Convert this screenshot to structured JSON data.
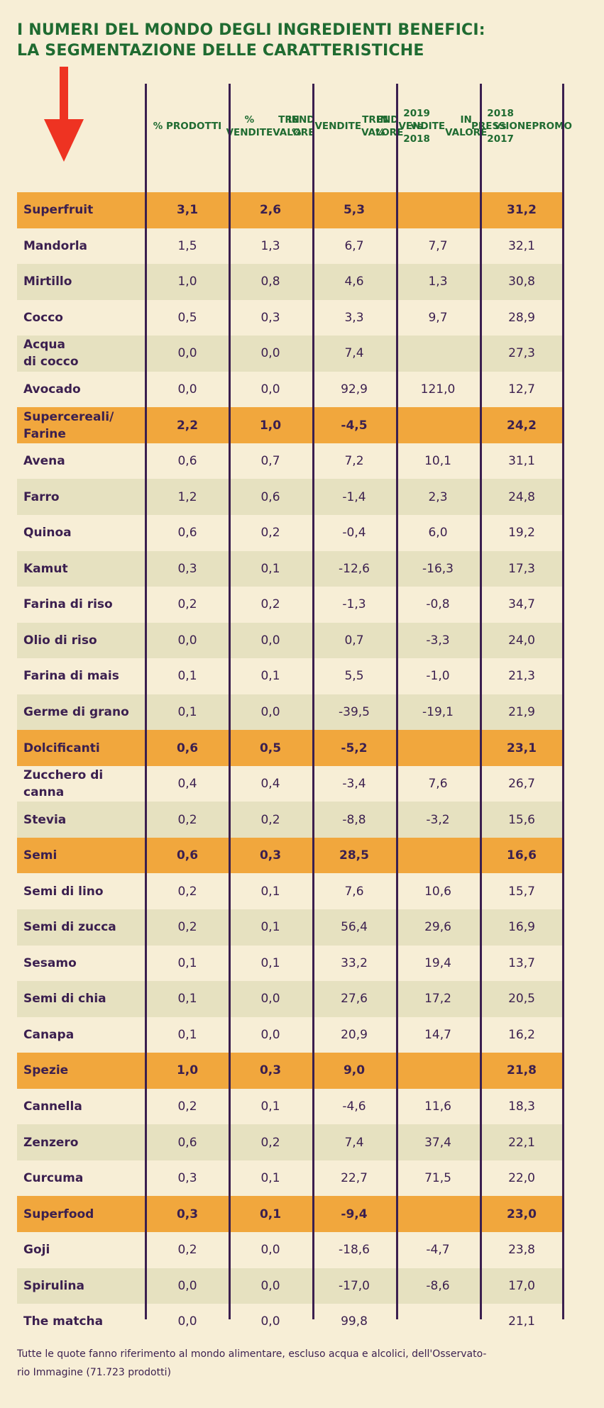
{
  "title": {
    "line1": "I NUMERI DEL MONDO DEGLI INGREDIENTI BENEFICI:",
    "line2": "LA SEGMENTAZIONE DELLE CARATTERISTICHE"
  },
  "colors": {
    "title": "#1f6b31",
    "text": "#3b1f4f",
    "background": "#f7eed6",
    "stripe": "#e6e1c0",
    "category": "#f1a73d",
    "arrow": "#ee3322"
  },
  "headers": [
    [
      "% PRODOTTI"
    ],
    [
      "% VENDITE",
      "IN VALORE"
    ],
    [
      "TREND %",
      "VENDITE",
      "IN VALORE",
      "2019 vs 2018"
    ],
    [
      "TREND %",
      "VENDITE",
      "IN VALORE",
      "2018 vs 2017"
    ],
    [
      "PRESSIONE",
      "PROMO"
    ]
  ],
  "rows": [
    {
      "type": "category",
      "name": [
        "Superfruit"
      ],
      "v": [
        "3,1",
        "2,6",
        "5,3",
        "",
        "31,2"
      ]
    },
    {
      "type": "item",
      "name": [
        "Mandorla"
      ],
      "v": [
        "1,5",
        "1,3",
        "6,7",
        "7,7",
        "32,1"
      ]
    },
    {
      "type": "item",
      "name": [
        "Mirtillo"
      ],
      "v": [
        "1,0",
        "0,8",
        "4,6",
        "1,3",
        "30,8"
      ]
    },
    {
      "type": "item",
      "name": [
        "Cocco"
      ],
      "v": [
        "0,5",
        "0,3",
        "3,3",
        "9,7",
        "28,9"
      ]
    },
    {
      "type": "item",
      "name": [
        "Acqua",
        "di cocco"
      ],
      "v": [
        "0,0",
        "0,0",
        "7,4",
        "",
        "27,3"
      ]
    },
    {
      "type": "item",
      "name": [
        "Avocado"
      ],
      "v": [
        "0,0",
        "0,0",
        "92,9",
        "121,0",
        "12,7"
      ]
    },
    {
      "type": "category",
      "name": [
        "Supercereali/",
        "Farine"
      ],
      "v": [
        "2,2",
        "1,0",
        "-4,5",
        "",
        "24,2"
      ]
    },
    {
      "type": "item",
      "name": [
        "Avena"
      ],
      "v": [
        "0,6",
        "0,7",
        "7,2",
        "10,1",
        "31,1"
      ]
    },
    {
      "type": "item",
      "name": [
        "Farro"
      ],
      "v": [
        "1,2",
        "0,6",
        "-1,4",
        "2,3",
        "24,8"
      ]
    },
    {
      "type": "item",
      "name": [
        "Quinoa"
      ],
      "v": [
        "0,6",
        "0,2",
        "-0,4",
        "6,0",
        "19,2"
      ]
    },
    {
      "type": "item",
      "name": [
        "Kamut"
      ],
      "v": [
        "0,3",
        "0,1",
        "-12,6",
        "-16,3",
        "17,3"
      ]
    },
    {
      "type": "item",
      "name": [
        "Farina di riso"
      ],
      "v": [
        "0,2",
        "0,2",
        "-1,3",
        "-0,8",
        "34,7"
      ]
    },
    {
      "type": "item",
      "name": [
        "Olio di riso"
      ],
      "v": [
        "0,0",
        "0,0",
        "0,7",
        "-3,3",
        "24,0"
      ]
    },
    {
      "type": "item",
      "name": [
        "Farina di mais"
      ],
      "v": [
        "0,1",
        "0,1",
        "5,5",
        "-1,0",
        "21,3"
      ]
    },
    {
      "type": "item",
      "name": [
        "Germe di grano"
      ],
      "v": [
        "0,1",
        "0,0",
        "-39,5",
        "-19,1",
        "21,9"
      ]
    },
    {
      "type": "category",
      "name": [
        "Dolcificanti"
      ],
      "v": [
        "0,6",
        "0,5",
        "-5,2",
        "",
        "23,1"
      ]
    },
    {
      "type": "item",
      "name": [
        "Zucchero di",
        "canna"
      ],
      "v": [
        "0,4",
        "0,4",
        "-3,4",
        "7,6",
        "26,7"
      ]
    },
    {
      "type": "item",
      "name": [
        "Stevia"
      ],
      "v": [
        "0,2",
        "0,2",
        "-8,8",
        "-3,2",
        "15,6"
      ]
    },
    {
      "type": "category",
      "name": [
        "Semi"
      ],
      "v": [
        "0,6",
        "0,3",
        "28,5",
        "",
        "16,6"
      ]
    },
    {
      "type": "item",
      "name": [
        "Semi di lino"
      ],
      "v": [
        "0,2",
        "0,1",
        "7,6",
        "10,6",
        "15,7"
      ]
    },
    {
      "type": "item",
      "name": [
        "Semi di zucca"
      ],
      "v": [
        "0,2",
        "0,1",
        "56,4",
        "29,6",
        "16,9"
      ]
    },
    {
      "type": "item",
      "name": [
        "Sesamo"
      ],
      "v": [
        "0,1",
        "0,1",
        "33,2",
        "19,4",
        "13,7"
      ]
    },
    {
      "type": "item",
      "name": [
        "Semi di chia"
      ],
      "v": [
        "0,1",
        "0,0",
        "27,6",
        "17,2",
        "20,5"
      ]
    },
    {
      "type": "item",
      "name": [
        "Canapa"
      ],
      "v": [
        "0,1",
        "0,0",
        "20,9",
        "14,7",
        "16,2"
      ]
    },
    {
      "type": "category",
      "name": [
        "Spezie"
      ],
      "v": [
        "1,0",
        "0,3",
        "9,0",
        "",
        "21,8"
      ]
    },
    {
      "type": "item",
      "name": [
        "Cannella"
      ],
      "v": [
        "0,2",
        "0,1",
        "-4,6",
        "11,6",
        "18,3"
      ]
    },
    {
      "type": "item",
      "name": [
        "Zenzero"
      ],
      "v": [
        "0,6",
        "0,2",
        "7,4",
        "37,4",
        "22,1"
      ]
    },
    {
      "type": "item",
      "name": [
        "Curcuma"
      ],
      "v": [
        "0,3",
        "0,1",
        "22,7",
        "71,5",
        "22,0"
      ]
    },
    {
      "type": "category",
      "name": [
        "Superfood"
      ],
      "v": [
        "0,3",
        "0,1",
        "-9,4",
        "",
        "23,0"
      ]
    },
    {
      "type": "item",
      "name": [
        "Goji"
      ],
      "v": [
        "0,2",
        "0,0",
        "-18,6",
        "-4,7",
        "23,8"
      ]
    },
    {
      "type": "item",
      "name": [
        "Spirulina"
      ],
      "v": [
        "0,0",
        "0,0",
        "-17,0",
        "-8,6",
        "17,0"
      ]
    },
    {
      "type": "item",
      "name": [
        "The matcha"
      ],
      "v": [
        "0,0",
        "0,0",
        "99,8",
        "",
        "21,1"
      ]
    }
  ],
  "footnote": {
    "line1": "Tutte le quote fanno riferimento al mondo alimentare, escluso acqua e alcolici, dell'Osservato-",
    "line2": "rio Immagine (71.723 prodotti)"
  }
}
